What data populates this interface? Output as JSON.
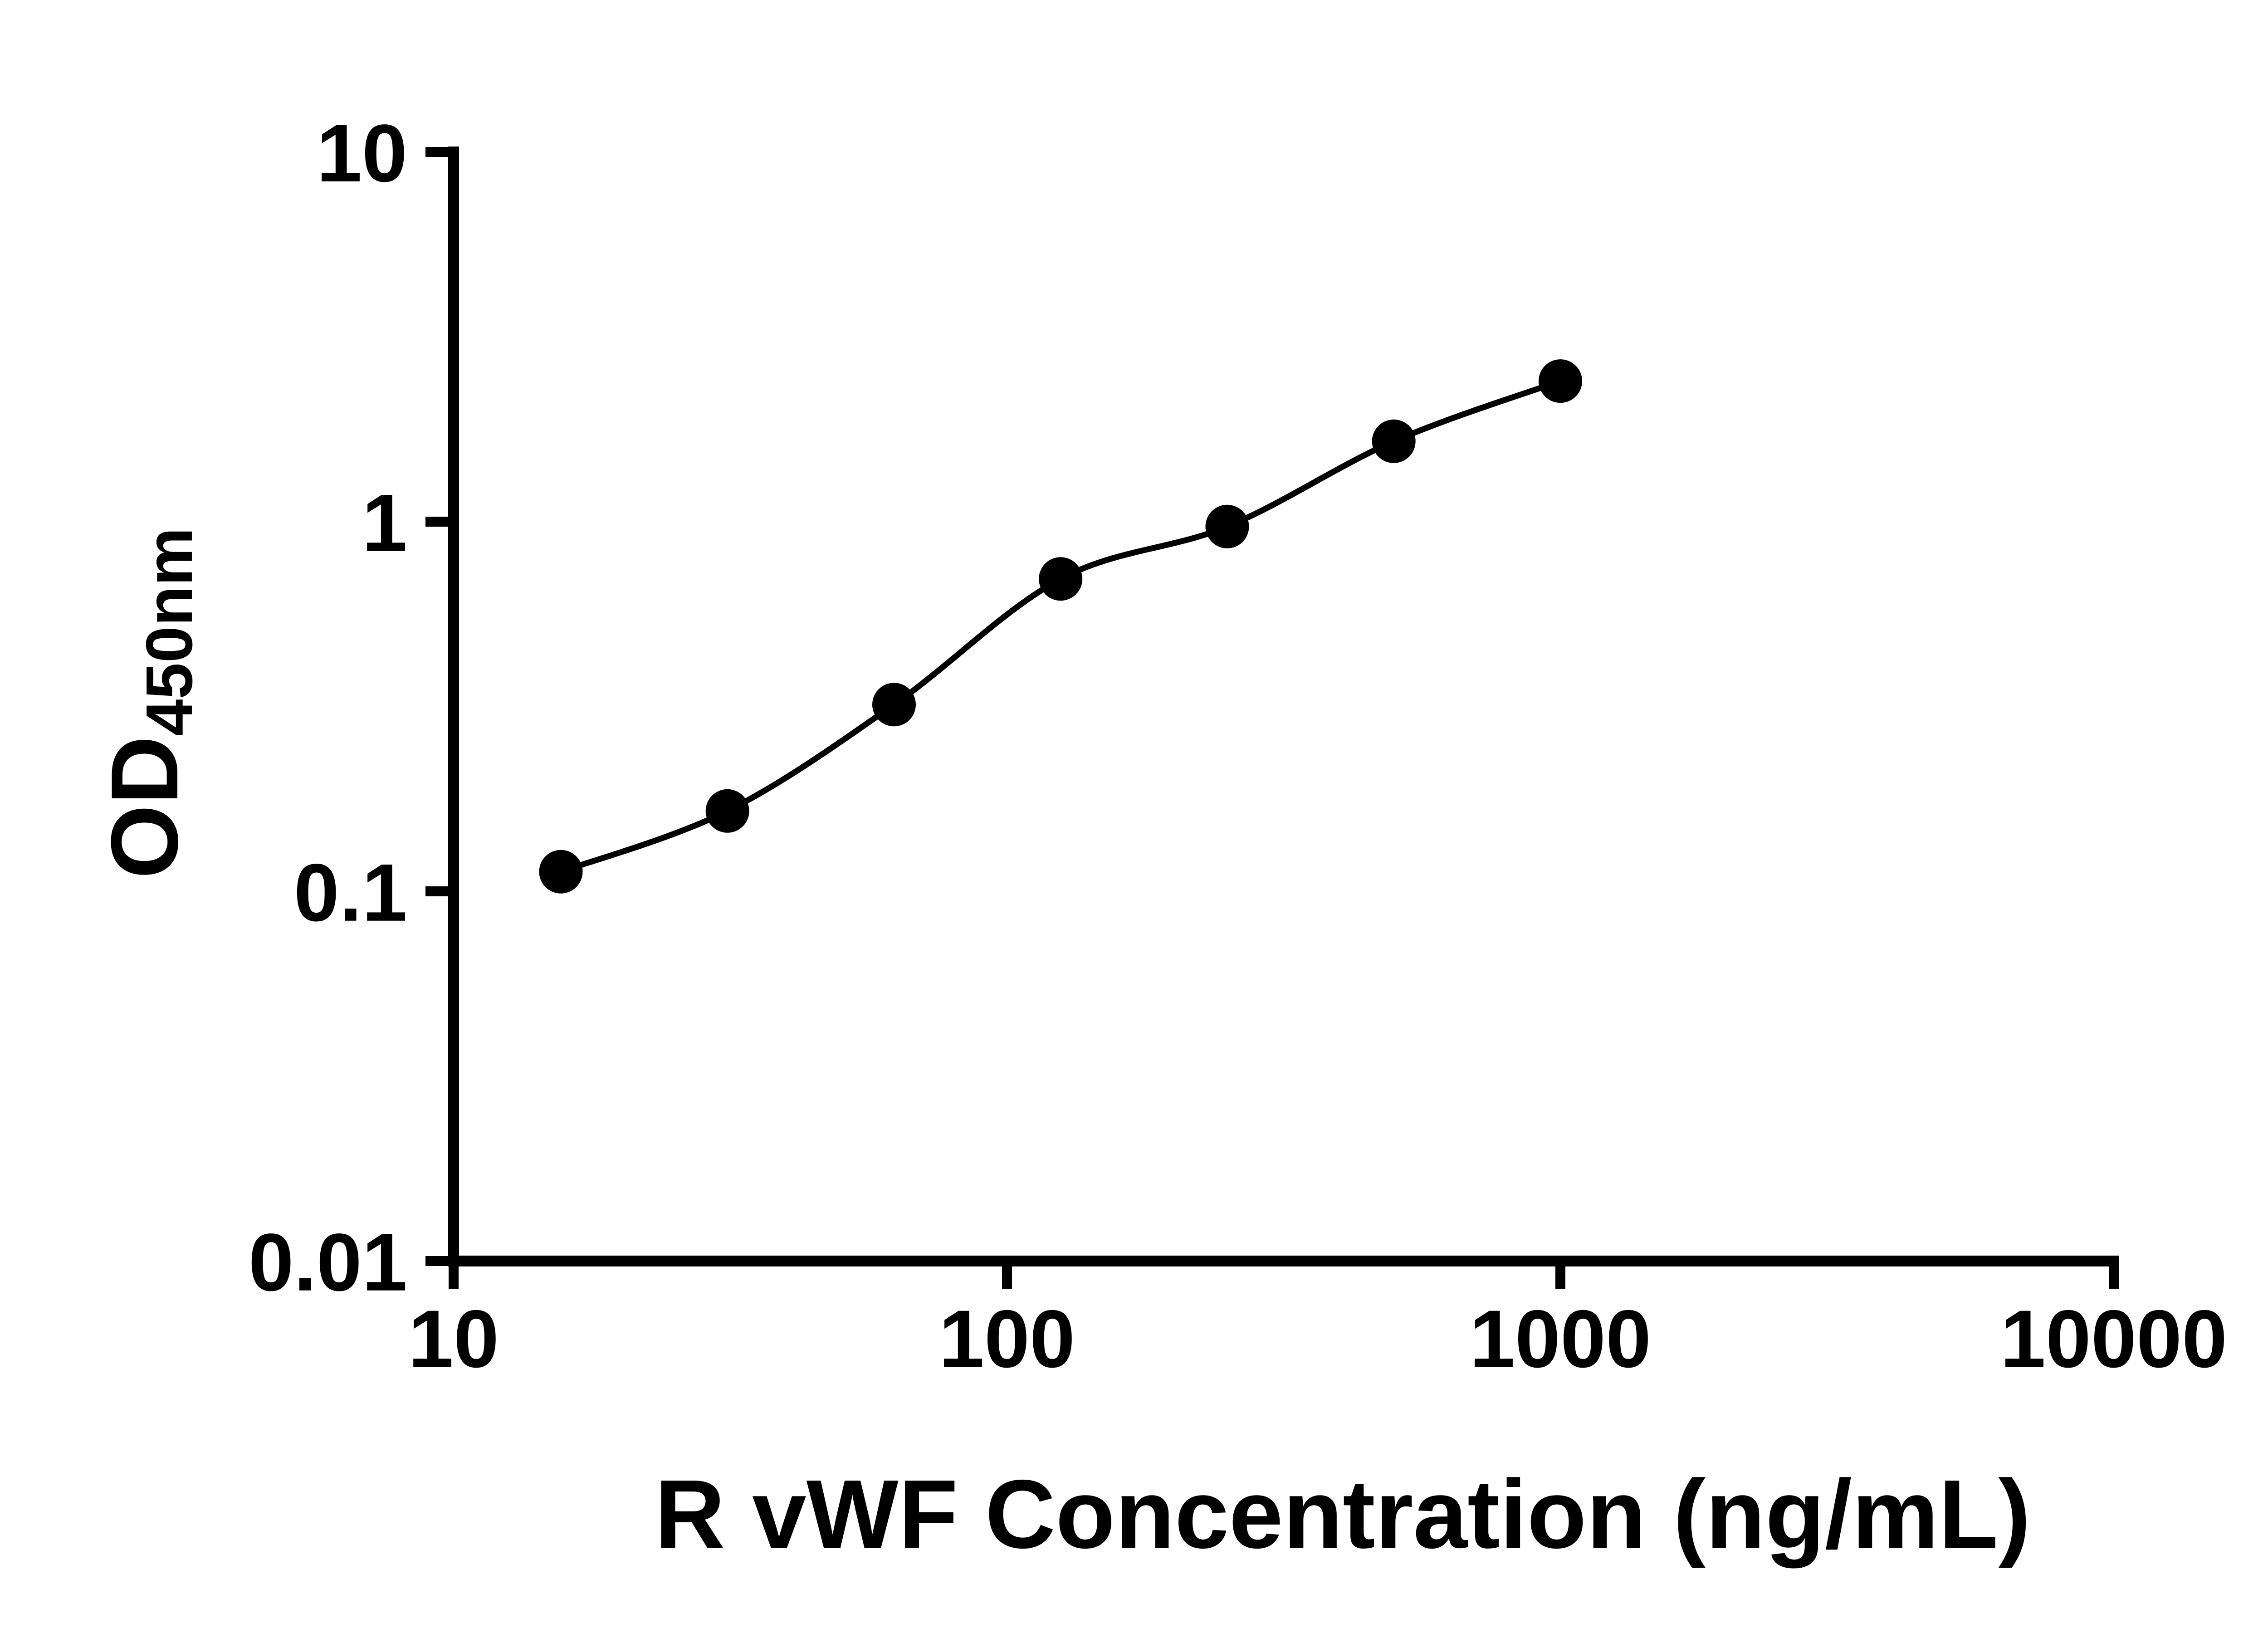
{
  "chart_data": {
    "type": "scatter",
    "title": "",
    "xlabel": "R vWF Concentration (ng/mL)",
    "ylabel": "OD",
    "ylabel_subscript": "450nm",
    "x_scale": "log",
    "y_scale": "log",
    "xlim": [
      10,
      10000
    ],
    "ylim": [
      0.01,
      10
    ],
    "x_ticks": [
      10,
      100,
      1000,
      10000
    ],
    "x_tick_labels": [
      "10",
      "100",
      "1000",
      "10000"
    ],
    "y_ticks": [
      0.01,
      0.1,
      1,
      10
    ],
    "y_tick_labels": [
      "0.01",
      "0.1",
      "1",
      "10"
    ],
    "x": [
      15.625,
      31.25,
      62.5,
      125,
      250,
      500,
      1000
    ],
    "y": [
      0.113,
      0.165,
      0.32,
      0.7,
      0.97,
      1.65,
      2.4
    ],
    "curve": "smooth standard-curve fit through data points",
    "grid": false,
    "legend": false,
    "marker_color": "#000000",
    "line_color": "#000000",
    "axis_color": "#000000"
  }
}
